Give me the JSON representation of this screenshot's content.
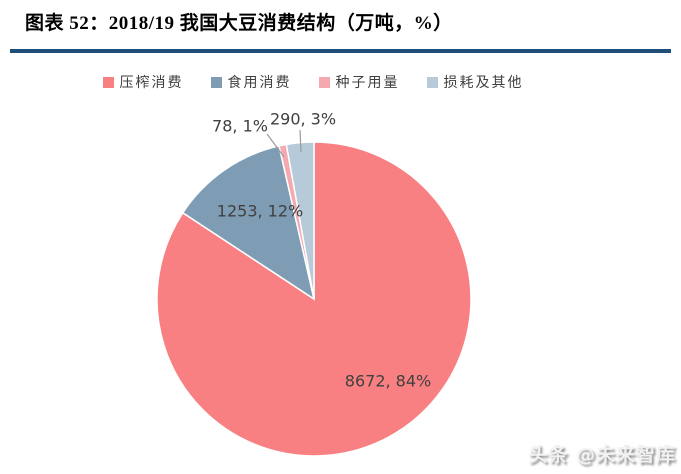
{
  "header": {
    "title": "图表 52：2018/19 我国大豆消费结构（万吨，%）"
  },
  "colors": {
    "title_rule": "#1F4E79",
    "data_label_text": "#404040",
    "leader_line": "#9B9B9B"
  },
  "chart_data": {
    "type": "pie",
    "title": "2018/19 我国大豆消费结构",
    "unit": "万吨, %",
    "legend_position": "top",
    "start_angle_deg": 0,
    "direction": "clockwise",
    "slices": [
      {
        "label": "压榨消费",
        "value": 8672,
        "percent": 84,
        "color": "#F98082"
      },
      {
        "label": "食用消费",
        "value": 1253,
        "percent": 12,
        "color": "#7E9DB5"
      },
      {
        "label": "种子用量",
        "value": 78,
        "percent": 1,
        "color": "#F4A9B0"
      },
      {
        "label": "损耗及其他",
        "value": 290,
        "percent": 3,
        "color": "#B7CAD9"
      }
    ],
    "data_labels": [
      "8672, 84%",
      "1253, 12%",
      "78, 1%",
      "290, 3%"
    ]
  },
  "watermark": {
    "text": "头条 @未来智库"
  }
}
